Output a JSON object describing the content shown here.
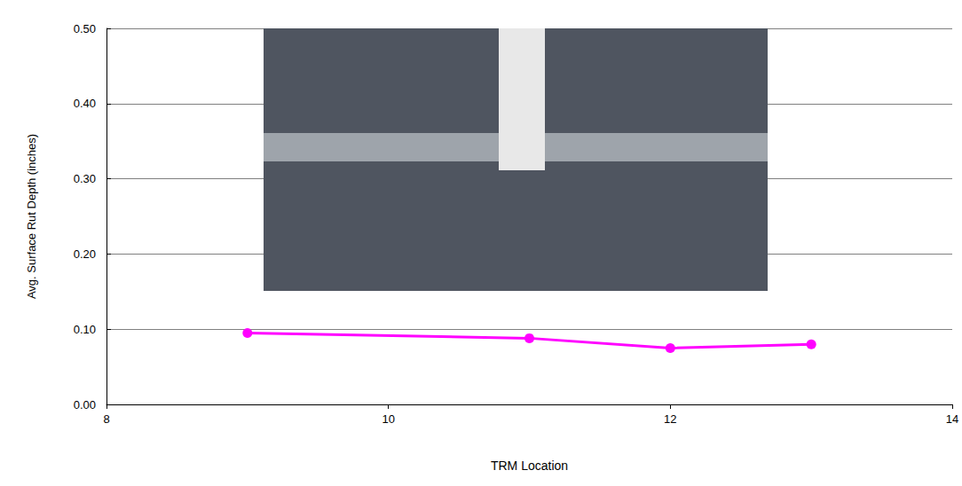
{
  "chart_data": {
    "type": "line",
    "xlabel": "TRM Location",
    "ylabel": "Avg. Surface Rut Depth (inches)",
    "x": [
      9,
      11,
      12,
      13
    ],
    "values": [
      0.095,
      0.088,
      0.075,
      0.08
    ],
    "color": "#ff00ff",
    "marker": "circle",
    "line_style": "solid",
    "xlim": [
      8,
      14
    ],
    "xticks": [
      8,
      10,
      12,
      14
    ],
    "ylim": [
      0,
      0.5
    ],
    "yticks": [
      {
        "value": 0,
        "label": "0.00"
      },
      {
        "value": 0.1,
        "label": "0.10"
      },
      {
        "value": 0.2,
        "label": "0.20"
      },
      {
        "value": 0.3,
        "label": "0.30"
      },
      {
        "value": 0.4,
        "label": "0.40"
      },
      {
        "value": 0.5,
        "label": "0.50"
      }
    ],
    "grid": true
  }
}
